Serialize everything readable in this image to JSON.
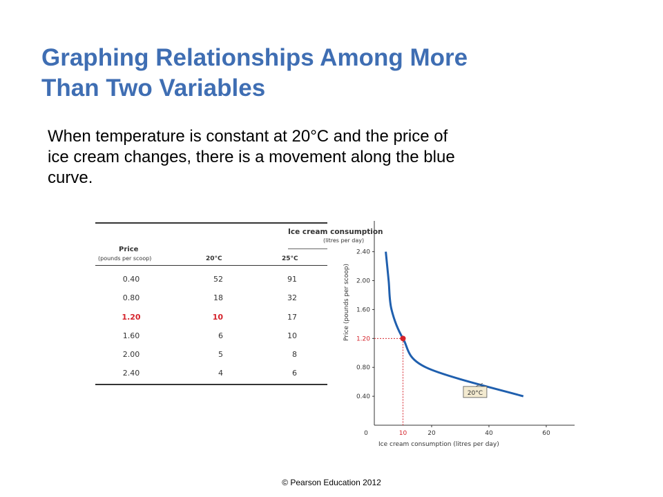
{
  "slide": {
    "title_line1": "Graphing Relationships Among More",
    "title_line2": "Than Two Variables",
    "body_line1": "When temperature is constant at 20°C and the price of",
    "body_line2": "ice cream changes, there is a movement along the blue",
    "body_line3": "curve.",
    "footer": "© Pearson Education 2012"
  },
  "table": {
    "col_price_title": "Price",
    "col_price_unit": "(pounds per scoop)",
    "group_title": "Ice cream consumption",
    "group_unit": "(litres per day)",
    "col_20": "20°C",
    "col_25": "25°C",
    "rows": [
      {
        "price": "0.40",
        "c20": "52",
        "c25": "91"
      },
      {
        "price": "0.80",
        "c20": "18",
        "c25": "32"
      },
      {
        "price": "1.20",
        "c20": "10",
        "c25": "17"
      },
      {
        "price": "1.60",
        "c20": "6",
        "c25": "10"
      },
      {
        "price": "2.00",
        "c20": "5",
        "c25": "8"
      },
      {
        "price": "2.40",
        "c20": "4",
        "c25": "6"
      }
    ],
    "highlight_row_index": 2
  },
  "chart_data": {
    "type": "line",
    "xlabel": "Ice cream consumption (litres per day)",
    "ylabel": "Price (pounds per scoop)",
    "xlim": [
      0,
      65
    ],
    "ylim": [
      0,
      2.6
    ],
    "x_ticks": [
      "0",
      "20",
      "40",
      "60"
    ],
    "y_ticks": [
      "0.40",
      "0.80",
      "1.20",
      "1.60",
      "2.00",
      "2.40"
    ],
    "highlight_x_tick": "10",
    "highlight_y_tick": "1.20",
    "series": [
      {
        "name": "20°C",
        "points": [
          [
            4,
            2.4
          ],
          [
            5,
            2.0
          ],
          [
            6,
            1.6
          ],
          [
            10,
            1.2
          ],
          [
            18,
            0.8
          ],
          [
            52,
            0.4
          ]
        ]
      }
    ],
    "highlight_point": {
      "x": 10,
      "y": 1.2
    },
    "colors": {
      "curve": "#1f5fae",
      "highlight": "#d5232b",
      "label_box": "#f3ead0"
    },
    "grid": false
  }
}
